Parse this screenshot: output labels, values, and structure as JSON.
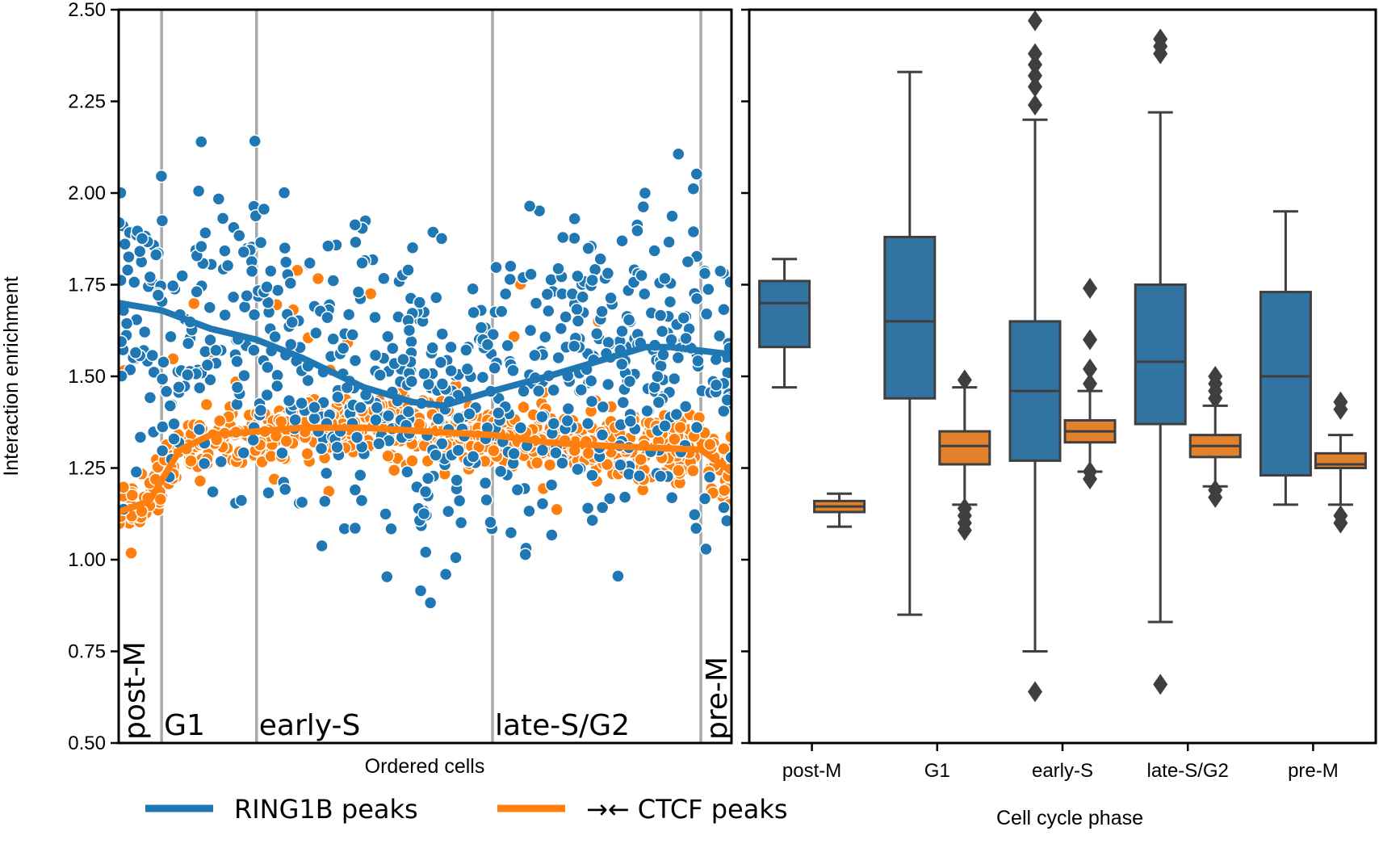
{
  "colors": {
    "ring1b": "#1f77b4",
    "ring1b_box": "#3274a1",
    "ctcf": "#ff7f0e",
    "ctcf_box": "#e1812c",
    "boundary": "#a9a9a9",
    "box_edge": "#3f3f3f",
    "axis": "#000000"
  },
  "legend": {
    "items": [
      {
        "label": "RING1B peaks",
        "color": "#1f77b4"
      },
      {
        "label": "→← CTCF peaks",
        "color": "#ff7f0e"
      }
    ]
  },
  "chart_data": [
    {
      "type": "scatter",
      "xlabel": "Ordered cells",
      "ylabel": "Interaction enrichment",
      "ylim": [
        0.5,
        2.5
      ],
      "yticks": [
        "0.50",
        "0.75",
        "1.00",
        "1.25",
        "1.50",
        "1.75",
        "2.00",
        "2.25",
        "2.50"
      ],
      "x_range": [
        0,
        1000
      ],
      "phase_boundaries": [
        {
          "label": "post-M",
          "start": 0,
          "end": 70,
          "rotated": true
        },
        {
          "label": "G1",
          "start": 70,
          "end": 225,
          "rotated": false
        },
        {
          "label": "early-S",
          "start": 225,
          "end": 610,
          "rotated": false
        },
        {
          "label": "late-S/G2",
          "start": 610,
          "end": 950,
          "rotated": false
        },
        {
          "label": "pre-M",
          "start": 950,
          "end": 1000,
          "rotated": true
        }
      ],
      "series": [
        {
          "name": "RING1B peaks",
          "trend": [
            [
              0,
              1.7
            ],
            [
              70,
              1.68
            ],
            [
              150,
              1.63
            ],
            [
              225,
              1.6
            ],
            [
              300,
              1.55
            ],
            [
              400,
              1.47
            ],
            [
              480,
              1.43
            ],
            [
              530,
              1.42
            ],
            [
              610,
              1.46
            ],
            [
              700,
              1.5
            ],
            [
              800,
              1.55
            ],
            [
              860,
              1.58
            ],
            [
              900,
              1.58
            ],
            [
              950,
              1.57
            ],
            [
              1000,
              1.56
            ]
          ]
        },
        {
          "name": "CTCF peaks",
          "trend": [
            [
              0,
              1.13
            ],
            [
              50,
              1.16
            ],
            [
              100,
              1.3
            ],
            [
              150,
              1.34
            ],
            [
              225,
              1.35
            ],
            [
              300,
              1.36
            ],
            [
              400,
              1.36
            ],
            [
              500,
              1.35
            ],
            [
              610,
              1.34
            ],
            [
              700,
              1.32
            ],
            [
              800,
              1.31
            ],
            [
              950,
              1.3
            ],
            [
              1000,
              1.24
            ]
          ]
        }
      ]
    },
    {
      "type": "box",
      "xlabel": "Cell cycle phase",
      "ylim": [
        0.5,
        2.5
      ],
      "categories": [
        "post-M",
        "G1",
        "early-S",
        "late-S/G2",
        "pre-M"
      ],
      "series": [
        {
          "name": "RING1B peaks",
          "boxes": [
            {
              "q1": 1.58,
              "median": 1.7,
              "q3": 1.76,
              "whisker_low": 1.47,
              "whisker_high": 1.82,
              "outliers": []
            },
            {
              "q1": 1.44,
              "median": 1.65,
              "q3": 1.88,
              "whisker_low": 0.85,
              "whisker_high": 2.33,
              "outliers": []
            },
            {
              "q1": 1.27,
              "median": 1.46,
              "q3": 1.65,
              "whisker_low": 0.75,
              "whisker_high": 2.2,
              "outliers": [
                0.64,
                2.24,
                2.29,
                2.32,
                2.35,
                2.38,
                2.47
              ]
            },
            {
              "q1": 1.37,
              "median": 1.54,
              "q3": 1.75,
              "whisker_low": 0.83,
              "whisker_high": 2.22,
              "outliers": [
                0.66,
                2.38,
                2.4,
                2.42
              ]
            },
            {
              "q1": 1.23,
              "median": 1.5,
              "q3": 1.73,
              "whisker_low": 1.15,
              "whisker_high": 1.95,
              "outliers": []
            }
          ]
        },
        {
          "name": "CTCF peaks",
          "boxes": [
            {
              "q1": 1.13,
              "median": 1.145,
              "q3": 1.16,
              "whisker_low": 1.09,
              "whisker_high": 1.18,
              "outliers": []
            },
            {
              "q1": 1.26,
              "median": 1.31,
              "q3": 1.35,
              "whisker_low": 1.15,
              "whisker_high": 1.47,
              "outliers": [
                1.08,
                1.1,
                1.12,
                1.14,
                1.49
              ]
            },
            {
              "q1": 1.32,
              "median": 1.35,
              "q3": 1.38,
              "whisker_low": 1.24,
              "whisker_high": 1.46,
              "outliers": [
                1.22,
                1.24,
                1.48,
                1.52,
                1.6,
                1.74
              ]
            },
            {
              "q1": 1.28,
              "median": 1.31,
              "q3": 1.34,
              "whisker_low": 1.2,
              "whisker_high": 1.42,
              "outliers": [
                1.17,
                1.19,
                1.44,
                1.46,
                1.48,
                1.5
              ]
            },
            {
              "q1": 1.25,
              "median": 1.26,
              "q3": 1.29,
              "whisker_low": 1.15,
              "whisker_high": 1.34,
              "outliers": [
                1.1,
                1.12,
                1.41,
                1.43
              ]
            }
          ]
        }
      ]
    }
  ]
}
